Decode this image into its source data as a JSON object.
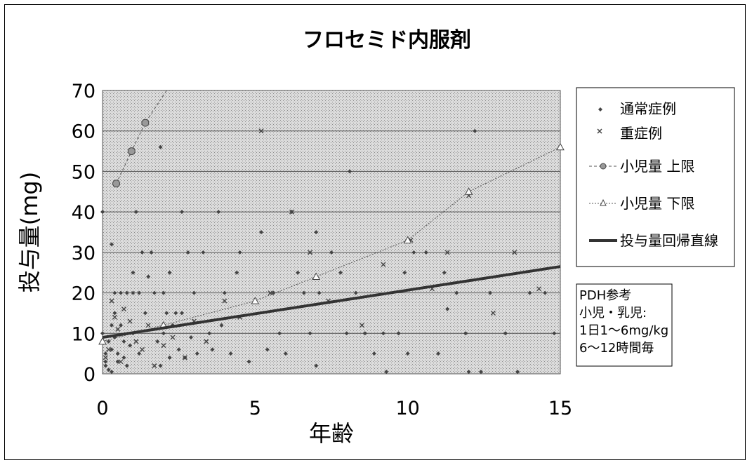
{
  "chart_data": {
    "type": "scatter",
    "title": "フロセミド内服剤",
    "xlabel": "年齢",
    "ylabel": "投与量(mg)",
    "xlim": [
      0,
      15
    ],
    "ylim": [
      0,
      70
    ],
    "x_ticks": [
      "0",
      "5",
      "10",
      "15"
    ],
    "y_ticks": [
      "0",
      "10",
      "20",
      "30",
      "40",
      "50",
      "60",
      "70"
    ],
    "grid": "horizontal",
    "legend_position": "right",
    "series": [
      {
        "name": "通常症例",
        "marker": "diamond",
        "points": [
          [
            0.0,
            40
          ],
          [
            0.0,
            10
          ],
          [
            0.1,
            5
          ],
          [
            0.1,
            3
          ],
          [
            0.1,
            2
          ],
          [
            0.2,
            8
          ],
          [
            0.2,
            1
          ],
          [
            0.3,
            32
          ],
          [
            0.3,
            12
          ],
          [
            0.3,
            6
          ],
          [
            0.3,
            0.5
          ],
          [
            0.4,
            20
          ],
          [
            0.4,
            15
          ],
          [
            0.4,
            9
          ],
          [
            0.5,
            5
          ],
          [
            0.5,
            3
          ],
          [
            0.6,
            20
          ],
          [
            0.6,
            12
          ],
          [
            0.7,
            8
          ],
          [
            0.7,
            4
          ],
          [
            0.8,
            20
          ],
          [
            0.8,
            2
          ],
          [
            0.9,
            7
          ],
          [
            1.0,
            25
          ],
          [
            1.0,
            20
          ],
          [
            1.0,
            10
          ],
          [
            1.1,
            40
          ],
          [
            1.2,
            20
          ],
          [
            1.2,
            5
          ],
          [
            1.3,
            30
          ],
          [
            1.4,
            15
          ],
          [
            1.5,
            24
          ],
          [
            1.6,
            30
          ],
          [
            1.7,
            20
          ],
          [
            1.8,
            8
          ],
          [
            1.9,
            56
          ],
          [
            1.9,
            2
          ],
          [
            2.0,
            20
          ],
          [
            2.0,
            10
          ],
          [
            2.1,
            15
          ],
          [
            2.2,
            4
          ],
          [
            2.2,
            25
          ],
          [
            2.3,
            12
          ],
          [
            2.4,
            15
          ],
          [
            2.5,
            6
          ],
          [
            2.6,
            40
          ],
          [
            2.6,
            15
          ],
          [
            2.7,
            4
          ],
          [
            2.8,
            30
          ],
          [
            2.9,
            9
          ],
          [
            3.0,
            20
          ],
          [
            3.1,
            5
          ],
          [
            3.3,
            30
          ],
          [
            3.5,
            10
          ],
          [
            3.6,
            6
          ],
          [
            3.8,
            40
          ],
          [
            3.9,
            12
          ],
          [
            4.0,
            20
          ],
          [
            4.2,
            5
          ],
          [
            4.4,
            25
          ],
          [
            4.5,
            30
          ],
          [
            4.8,
            3
          ],
          [
            5.0,
            18
          ],
          [
            5.2,
            35
          ],
          [
            5.4,
            6
          ],
          [
            5.6,
            20
          ],
          [
            5.8,
            10
          ],
          [
            6.0,
            5
          ],
          [
            6.2,
            40
          ],
          [
            6.4,
            25
          ],
          [
            6.6,
            20
          ],
          [
            6.8,
            10
          ],
          [
            7.0,
            2
          ],
          [
            7.0,
            35
          ],
          [
            7.1,
            20
          ],
          [
            7.5,
            30
          ],
          [
            7.8,
            25
          ],
          [
            8.0,
            10
          ],
          [
            8.1,
            50
          ],
          [
            8.3,
            20
          ],
          [
            8.6,
            10
          ],
          [
            8.9,
            5
          ],
          [
            9.2,
            10
          ],
          [
            9.3,
            0.5
          ],
          [
            9.7,
            10
          ],
          [
            9.9,
            25
          ],
          [
            10.0,
            5
          ],
          [
            10.2,
            30
          ],
          [
            10.6,
            30
          ],
          [
            11.0,
            5
          ],
          [
            11.2,
            25
          ],
          [
            11.3,
            16
          ],
          [
            11.6,
            20
          ],
          [
            11.9,
            10
          ],
          [
            12.0,
            0.5
          ],
          [
            12.2,
            60
          ],
          [
            12.4,
            0.5
          ],
          [
            12.7,
            20
          ],
          [
            13.2,
            10
          ],
          [
            13.6,
            0.5
          ],
          [
            14.0,
            20
          ],
          [
            14.5,
            20
          ],
          [
            14.8,
            10
          ]
        ]
      },
      {
        "name": "重症例",
        "marker": "cross",
        "points": [
          [
            0.1,
            4
          ],
          [
            0.2,
            6
          ],
          [
            0.3,
            18
          ],
          [
            0.4,
            14
          ],
          [
            0.5,
            11
          ],
          [
            0.6,
            3
          ],
          [
            0.7,
            16
          ],
          [
            0.9,
            13
          ],
          [
            1.1,
            8
          ],
          [
            1.3,
            6
          ],
          [
            1.5,
            12
          ],
          [
            1.7,
            2
          ],
          [
            2.0,
            7
          ],
          [
            2.3,
            9
          ],
          [
            2.7,
            4
          ],
          [
            3.0,
            13
          ],
          [
            3.4,
            8
          ],
          [
            4.0,
            18
          ],
          [
            4.5,
            14
          ],
          [
            5.2,
            60
          ],
          [
            5.5,
            20
          ],
          [
            6.2,
            40
          ],
          [
            6.8,
            30
          ],
          [
            7.4,
            18
          ],
          [
            8.5,
            12
          ],
          [
            9.2,
            27
          ],
          [
            10.1,
            33
          ],
          [
            10.8,
            21
          ],
          [
            11.3,
            30
          ],
          [
            12.0,
            44
          ],
          [
            12.8,
            15
          ],
          [
            13.5,
            30
          ],
          [
            14.3,
            21
          ]
        ]
      },
      {
        "name": "小児量 上限",
        "marker": "circle",
        "line": "dashed",
        "points": [
          [
            0.45,
            47
          ],
          [
            0.95,
            55
          ],
          [
            1.4,
            62
          ],
          [
            2.1,
            71
          ]
        ]
      },
      {
        "name": "小児量 下限",
        "marker": "triangle",
        "line": "dotted",
        "points": [
          [
            0,
            8
          ],
          [
            2,
            12
          ],
          [
            5,
            18
          ],
          [
            7,
            24
          ],
          [
            10,
            33
          ],
          [
            12,
            45
          ],
          [
            15,
            56
          ]
        ]
      },
      {
        "name": "投与量回帰直線",
        "type": "line",
        "points": [
          [
            0,
            9
          ],
          [
            15,
            26.5
          ]
        ]
      }
    ],
    "annotation": [
      "PDH参考",
      "小児・乳児:",
      "1日1～6mg/kg",
      "6～12時間毎"
    ]
  }
}
